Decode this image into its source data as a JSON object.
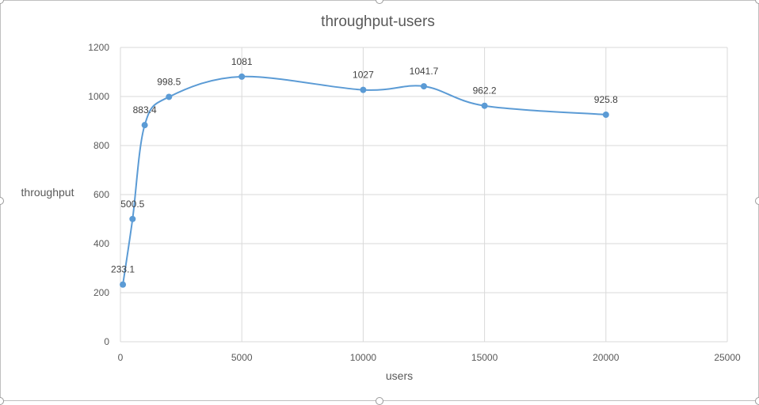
{
  "chart_data": {
    "type": "scatter",
    "title": "throughput-users",
    "xlabel": "users",
    "ylabel": "throughput",
    "xlim": [
      0,
      25000
    ],
    "ylim": [
      0,
      1200
    ],
    "x_ticks": [
      0,
      5000,
      10000,
      15000,
      20000,
      25000
    ],
    "y_ticks": [
      0,
      200,
      400,
      600,
      800,
      1000,
      1200
    ],
    "grid": true,
    "smooth_line": true,
    "line_color": "#5b9bd5",
    "series": [
      {
        "x": [
          100,
          500,
          1000,
          2000,
          5000,
          10000,
          12500,
          15000,
          20000
        ],
        "y": [
          233.1,
          500.5,
          883.4,
          998.5,
          1081,
          1027,
          1041.7,
          962.2,
          925.8
        ],
        "labels": [
          "233.1",
          "500.5",
          "883.4",
          "998.5",
          "1081",
          "1027",
          "1041.7",
          "962.2",
          "925.8"
        ]
      }
    ]
  }
}
